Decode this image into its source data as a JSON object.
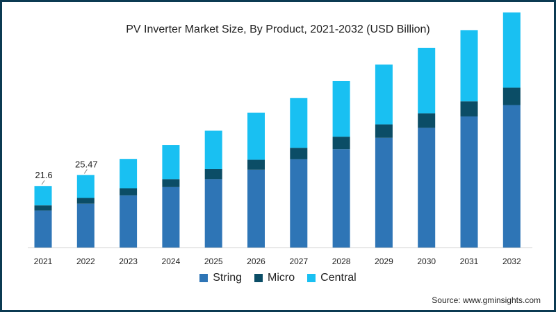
{
  "chart_data": {
    "type": "bar",
    "stacked": true,
    "title": "PV Inverter Market Size, By Product, 2021-2032 (USD Billion)",
    "xlabel": "",
    "ylabel": "",
    "categories": [
      "2021",
      "2022",
      "2023",
      "2024",
      "2025",
      "2026",
      "2027",
      "2028",
      "2029",
      "2030",
      "2031",
      "2032"
    ],
    "series": [
      {
        "name": "String",
        "color": "#2e75b6",
        "values": [
          13.0,
          15.4,
          18.3,
          21.2,
          24.0,
          27.3,
          31.0,
          34.5,
          38.5,
          42.0,
          46.0,
          50.0
        ]
      },
      {
        "name": "Micro",
        "color": "#0b4d66",
        "values": [
          1.8,
          2.0,
          2.5,
          2.8,
          3.5,
          3.5,
          4.0,
          4.4,
          4.7,
          5.1,
          5.3,
          6.1
        ]
      },
      {
        "name": "Central",
        "color": "#19c0f2",
        "values": [
          6.8,
          8.07,
          10.3,
          12.0,
          13.5,
          16.5,
          17.5,
          19.5,
          21.0,
          23.0,
          25.0,
          26.4
        ]
      }
    ],
    "data_labels": [
      {
        "category": "2021",
        "text": "21.6"
      },
      {
        "category": "2022",
        "text": "25.47"
      }
    ],
    "ylim": [
      0,
      82
    ],
    "grid": false,
    "legend_position": "bottom",
    "source": "Source: www.gminsights.com"
  }
}
